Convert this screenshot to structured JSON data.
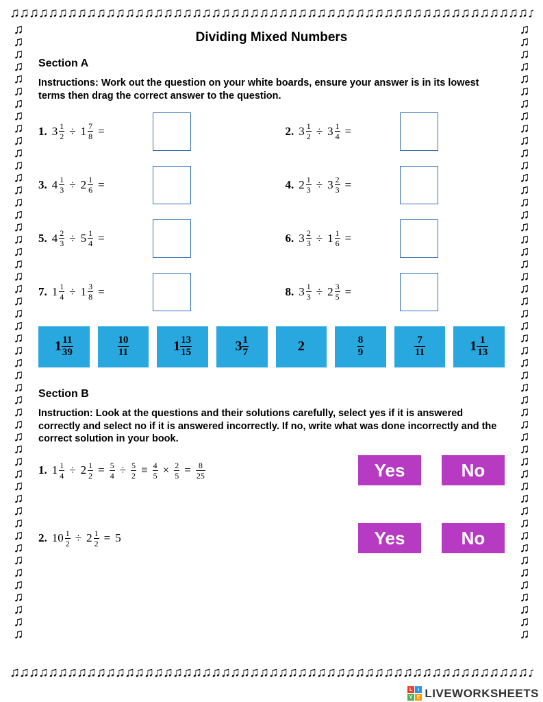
{
  "title": "Dividing Mixed Numbers",
  "sectionA": {
    "heading": "Section A",
    "instructions": "Instructions: Work out the question on your white boards, ensure your answer is in its lowest terms then drag the correct answer to the question.",
    "questions": [
      {
        "n": "1.",
        "a_whole": "3",
        "a_num": "1",
        "a_den": "2",
        "b_whole": "1",
        "b_num": "7",
        "b_den": "8"
      },
      {
        "n": "2.",
        "a_whole": "3",
        "a_num": "1",
        "a_den": "2",
        "b_whole": "3",
        "b_num": "1",
        "b_den": "4"
      },
      {
        "n": "3.",
        "a_whole": "4",
        "a_num": "1",
        "a_den": "3",
        "b_whole": "2",
        "b_num": "1",
        "b_den": "6"
      },
      {
        "n": "4.",
        "a_whole": "2",
        "a_num": "1",
        "a_den": "3",
        "b_whole": "3",
        "b_num": "2",
        "b_den": "3"
      },
      {
        "n": "5.",
        "a_whole": "4",
        "a_num": "2",
        "a_den": "3",
        "b_whole": "5",
        "b_num": "1",
        "b_den": "4"
      },
      {
        "n": "6.",
        "a_whole": "3",
        "a_num": "2",
        "a_den": "3",
        "b_whole": "1",
        "b_num": "1",
        "b_den": "6"
      },
      {
        "n": "7.",
        "a_whole": "1",
        "a_num": "1",
        "a_den": "4",
        "b_whole": "1",
        "b_num": "3",
        "b_den": "8"
      },
      {
        "n": "8.",
        "a_whole": "3",
        "a_num": "1",
        "a_den": "3",
        "b_whole": "2",
        "b_num": "3",
        "b_den": "5"
      }
    ],
    "tiles": [
      {
        "whole": "1",
        "num": "11",
        "den": "39"
      },
      {
        "whole": "",
        "num": "10",
        "den": "11"
      },
      {
        "whole": "1",
        "num": "13",
        "den": "15"
      },
      {
        "whole": "3",
        "num": "1",
        "den": "7"
      },
      {
        "whole": "2",
        "num": "",
        "den": ""
      },
      {
        "whole": "",
        "num": "8",
        "den": "9"
      },
      {
        "whole": "",
        "num": "7",
        "den": "11"
      },
      {
        "whole": "1",
        "num": "1",
        "den": "13"
      }
    ]
  },
  "sectionB": {
    "heading": "Section B",
    "instructions": "Instruction: Look at the questions and their solutions carefully, select yes if it is answered correctly and select no if it is answered incorrectly. If no, write what was done incorrectly and the correct solution in your book.",
    "yes_label": "Yes",
    "no_label": "No",
    "q1": {
      "n": "1.",
      "a_whole": "1",
      "a_num": "1",
      "a_den": "4",
      "b_whole": "2",
      "b_num": "1",
      "b_den": "2",
      "s1_num": "5",
      "s1_den": "4",
      "s2_num": "5",
      "s2_den": "2",
      "s3_num": "4",
      "s3_den": "5",
      "s4_num": "2",
      "s4_den": "5",
      "s5_num": "8",
      "s5_den": "25"
    },
    "q2": {
      "n": "2.",
      "a_whole": "10",
      "a_num": "1",
      "a_den": "2",
      "b_whole": "2",
      "b_num": "1",
      "b_den": "2",
      "result": "5"
    }
  },
  "colors": {
    "answer_box_border": "#2f6fb3",
    "tile_bg": "#29a7df",
    "yn_bg": "#b73bc2",
    "yn_text": "#ffffff"
  },
  "watermark": {
    "text": "LIVEWORKSHEETS",
    "logo_chars": [
      "L",
      "I",
      "V",
      "E"
    ],
    "logo_colors": [
      "#ef3b2c",
      "#2196f3",
      "#4caf50",
      "#ff9800"
    ]
  },
  "note_glyph": "♫"
}
